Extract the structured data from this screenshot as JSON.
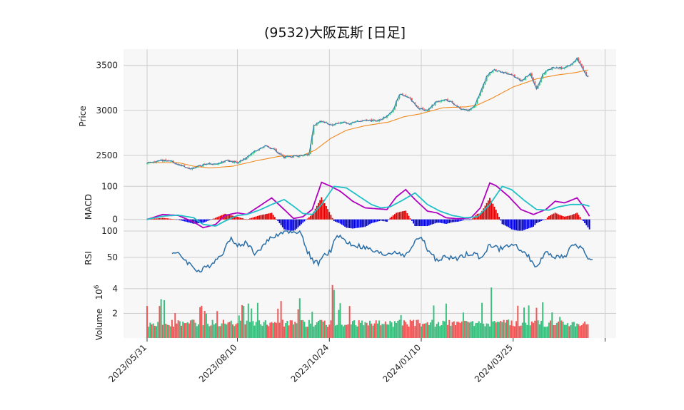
{
  "chart_data": {
    "type": "candlestick",
    "title": "(9532)大阪瓦斯 [日足]",
    "x_ticks": [
      "2023/05/31",
      "2023/08/10",
      "2023/10/24",
      "2024/01/10",
      "2024/03/25"
    ],
    "panels": [
      {
        "name": "price",
        "ylabel": "Price",
        "ylim": [
          2230,
          3680
        ],
        "yticks": [
          2500,
          3000,
          3500
        ],
        "series_anchors": [
          {
            "name": "close",
            "points": [
              [
                0,
                2420
              ],
              [
                5,
                2430
              ],
              [
                10,
                2445
              ],
              [
                16,
                2430
              ],
              [
                22,
                2390
              ],
              [
                28,
                2355
              ],
              [
                34,
                2380
              ],
              [
                40,
                2410
              ],
              [
                46,
                2415
              ],
              [
                52,
                2440
              ],
              [
                58,
                2420
              ],
              [
                64,
                2475
              ],
              [
                70,
                2555
              ],
              [
                76,
                2610
              ],
              [
                82,
                2560
              ],
              [
                88,
                2480
              ],
              [
                94,
                2490
              ],
              [
                100,
                2495
              ],
              [
                104,
                2520
              ],
              [
                107,
                2830
              ],
              [
                112,
                2880
              ],
              [
                118,
                2840
              ],
              [
                124,
                2870
              ],
              [
                130,
                2850
              ],
              [
                136,
                2880
              ],
              [
                142,
                2885
              ],
              [
                148,
                2890
              ],
              [
                154,
                2930
              ],
              [
                158,
                3010
              ],
              [
                162,
                3180
              ],
              [
                168,
                3150
              ],
              [
                174,
                3020
              ],
              [
                180,
                3000
              ],
              [
                186,
                3100
              ],
              [
                190,
                3120
              ],
              [
                196,
                3090
              ],
              [
                200,
                3030
              ],
              [
                206,
                3000
              ],
              [
                210,
                3040
              ],
              [
                214,
                3210
              ],
              [
                218,
                3380
              ],
              [
                222,
                3450
              ],
              [
                228,
                3420
              ],
              [
                234,
                3400
              ],
              [
                240,
                3330
              ],
              [
                246,
                3410
              ],
              [
                250,
                3240
              ],
              [
                254,
                3400
              ],
              [
                260,
                3470
              ],
              [
                266,
                3470
              ],
              [
                272,
                3500
              ],
              [
                276,
                3580
              ],
              [
                280,
                3450
              ],
              [
                283,
                3370
              ]
            ]
          },
          {
            "name": "ma",
            "points": [
              [
                0,
                2420
              ],
              [
                20,
                2420
              ],
              [
                30,
                2380
              ],
              [
                40,
                2360
              ],
              [
                55,
                2380
              ],
              [
                70,
                2440
              ],
              [
                85,
                2490
              ],
              [
                100,
                2500
              ],
              [
                108,
                2560
              ],
              [
                118,
                2690
              ],
              [
                128,
                2780
              ],
              [
                140,
                2830
              ],
              [
                155,
                2870
              ],
              [
                165,
                2930
              ],
              [
                175,
                2960
              ],
              [
                190,
                3030
              ],
              [
                205,
                3040
              ],
              [
                212,
                3060
              ],
              [
                222,
                3140
              ],
              [
                235,
                3260
              ],
              [
                250,
                3350
              ],
              [
                262,
                3390
              ],
              [
                275,
                3420
              ],
              [
                283,
                3450
              ]
            ]
          }
        ]
      },
      {
        "name": "macd",
        "ylabel": "MACD",
        "ylim": [
          -35,
          120
        ],
        "yticks": [
          0,
          100
        ],
        "series_anchors": [
          {
            "name": "macd",
            "points": [
              [
                0,
                0
              ],
              [
                10,
                15
              ],
              [
                20,
                12
              ],
              [
                30,
                -8
              ],
              [
                36,
                -25
              ],
              [
                44,
                -15
              ],
              [
                50,
                12
              ],
              [
                58,
                20
              ],
              [
                64,
                15
              ],
              [
                72,
                40
              ],
              [
                80,
                65
              ],
              [
                88,
                30
              ],
              [
                94,
                3
              ],
              [
                100,
                8
              ],
              [
                106,
                30
              ],
              [
                112,
                112
              ],
              [
                118,
                100
              ],
              [
                124,
                85
              ],
              [
                132,
                55
              ],
              [
                140,
                35
              ],
              [
                148,
                32
              ],
              [
                154,
                30
              ],
              [
                160,
                68
              ],
              [
                166,
                90
              ],
              [
                172,
                60
              ],
              [
                180,
                25
              ],
              [
                186,
                20
              ],
              [
                192,
                5
              ],
              [
                200,
                2
              ],
              [
                208,
                5
              ],
              [
                214,
                35
              ],
              [
                220,
                110
              ],
              [
                224,
                102
              ],
              [
                232,
                70
              ],
              [
                240,
                30
              ],
              [
                248,
                15
              ],
              [
                256,
                30
              ],
              [
                262,
                55
              ],
              [
                268,
                50
              ],
              [
                276,
                65
              ],
              [
                280,
                40
              ],
              [
                284,
                10
              ]
            ]
          },
          {
            "name": "signal",
            "points": [
              [
                0,
                0
              ],
              [
                10,
                10
              ],
              [
                20,
                13
              ],
              [
                30,
                5
              ],
              [
                36,
                -15
              ],
              [
                44,
                -20
              ],
              [
                50,
                -5
              ],
              [
                58,
                12
              ],
              [
                64,
                15
              ],
              [
                72,
                28
              ],
              [
                80,
                45
              ],
              [
                88,
                60
              ],
              [
                94,
                40
              ],
              [
                100,
                18
              ],
              [
                106,
                15
              ],
              [
                112,
                45
              ],
              [
                120,
                100
              ],
              [
                128,
                95
              ],
              [
                136,
                70
              ],
              [
                144,
                45
              ],
              [
                150,
                35
              ],
              [
                156,
                38
              ],
              [
                164,
                58
              ],
              [
                172,
                80
              ],
              [
                180,
                45
              ],
              [
                188,
                25
              ],
              [
                196,
                12
              ],
              [
                204,
                5
              ],
              [
                212,
                8
              ],
              [
                220,
                45
              ],
              [
                228,
                100
              ],
              [
                234,
                90
              ],
              [
                242,
                58
              ],
              [
                250,
                30
              ],
              [
                258,
                28
              ],
              [
                264,
                38
              ],
              [
                272,
                45
              ],
              [
                280,
                45
              ],
              [
                284,
                40
              ]
            ]
          }
        ]
      },
      {
        "name": "rsi",
        "ylabel": "RSI",
        "ylim": [
          0,
          100
        ],
        "yticks": [
          50,
          100
        ],
        "series_anchors": [
          {
            "name": "rsi",
            "points": [
              [
                16,
                60
              ],
              [
                22,
                52
              ],
              [
                28,
                35
              ],
              [
                34,
                22
              ],
              [
                40,
                35
              ],
              [
                46,
                50
              ],
              [
                50,
                65
              ],
              [
                54,
                90
              ],
              [
                58,
                70
              ],
              [
                64,
                78
              ],
              [
                70,
                55
              ],
              [
                76,
                80
              ],
              [
                82,
                90
              ],
              [
                88,
                100
              ],
              [
                94,
                100
              ],
              [
                98,
                100
              ],
              [
                102,
                68
              ],
              [
                106,
                45
              ],
              [
                110,
                38
              ],
              [
                114,
                55
              ],
              [
                118,
                60
              ],
              [
                122,
                95
              ],
              [
                128,
                78
              ],
              [
                134,
                72
              ],
              [
                140,
                68
              ],
              [
                146,
                60
              ],
              [
                152,
                55
              ],
              [
                158,
                60
              ],
              [
                162,
                60
              ],
              [
                166,
                52
              ],
              [
                172,
                80
              ],
              [
                176,
                90
              ],
              [
                180,
                65
              ],
              [
                186,
                45
              ],
              [
                192,
                50
              ],
              [
                198,
                48
              ],
              [
                204,
                55
              ],
              [
                210,
                60
              ],
              [
                214,
                45
              ],
              [
                220,
                75
              ],
              [
                226,
                65
              ],
              [
                232,
                72
              ],
              [
                238,
                70
              ],
              [
                244,
                55
              ],
              [
                250,
                32
              ],
              [
                256,
                58
              ],
              [
                262,
                52
              ],
              [
                268,
                50
              ],
              [
                274,
                75
              ],
              [
                278,
                70
              ],
              [
                282,
                55
              ],
              [
                286,
                42
              ]
            ]
          }
        ]
      },
      {
        "name": "volume",
        "ylabel": "Volume",
        "exponent_label": "1e6",
        "ylim": [
          0,
          4.4
        ],
        "yticks": [
          2,
          4
        ]
      }
    ],
    "colors": {
      "up": "#3bbf7f",
      "down": "#f05858",
      "ma": "#f08a20",
      "close_line": "#2c7fb8",
      "macd": "#b000c0",
      "signal": "#20c0c8",
      "hist_up": "#e00000",
      "hist_down": "#0000e0",
      "rsi": "#2b6fa8"
    }
  }
}
